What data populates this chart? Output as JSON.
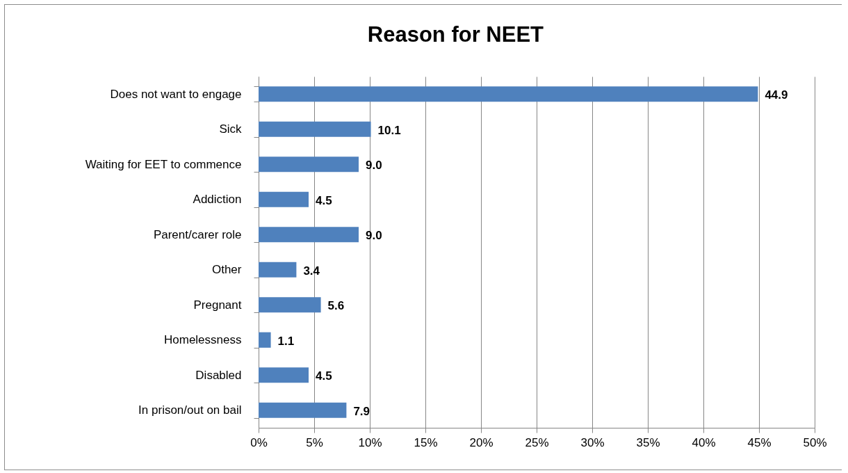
{
  "chart_data": {
    "type": "bar",
    "orientation": "horizontal",
    "title": "Reason for NEET",
    "categories": [
      "Does not want to engage",
      "Sick",
      "Waiting for EET to commence",
      "Addiction",
      "Parent/carer role",
      "Other",
      "Pregnant",
      "Homelessness",
      "Disabled",
      "In prison/out on bail"
    ],
    "values": [
      44.9,
      10.1,
      9.0,
      4.5,
      9.0,
      3.4,
      5.6,
      1.1,
      4.5,
      7.9
    ],
    "value_labels": [
      "44.9",
      "10.1",
      "9.0",
      "4.5",
      "9.0",
      "3.4",
      "5.6",
      "1.1",
      "4.5",
      "7.9"
    ],
    "color": "#4f81bd",
    "xlim": [
      0,
      50
    ],
    "xticks": [
      {
        "value": 0,
        "label": "0%"
      },
      {
        "value": 5,
        "label": "5%"
      },
      {
        "value": 10,
        "label": "10%"
      },
      {
        "value": 15,
        "label": "15%"
      },
      {
        "value": 20,
        "label": "20%"
      },
      {
        "value": 25,
        "label": "25%"
      },
      {
        "value": 30,
        "label": "30%"
      },
      {
        "value": 35,
        "label": "35%"
      },
      {
        "value": 40,
        "label": "40%"
      },
      {
        "value": 45,
        "label": "45%"
      },
      {
        "value": 50,
        "label": "50%"
      }
    ],
    "grid": "x"
  }
}
